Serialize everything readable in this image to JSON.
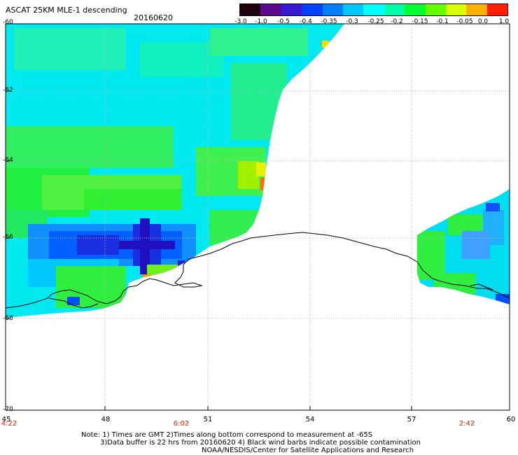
{
  "header": {
    "title": "ASCAT 25KM MLE-1 descending",
    "date": "20160620"
  },
  "colorbar": {
    "labels": [
      "-3.0",
      "-1.0",
      "-0.5",
      "-0.4",
      "-0.35",
      "-0.3",
      "-0.25",
      "-0.2",
      "-0.15",
      "-0.1",
      "-0.05",
      "0.0",
      "1.0"
    ],
    "colors": [
      "#200010",
      "#5a0a8a",
      "#3a1ad0",
      "#0040ff",
      "#0080ff",
      "#00c8ff",
      "#00ffff",
      "#00ffaa",
      "#00ff30",
      "#66ff00",
      "#d8ff00",
      "#ffb000",
      "#ff2000"
    ]
  },
  "axes": {
    "lat_labels": [
      "-60",
      "-62",
      "-64",
      "-66",
      "-68",
      "-70"
    ],
    "lon_labels": [
      "45",
      "48",
      "51",
      "54",
      "57",
      "60"
    ],
    "time_labels": [
      "4:22",
      "6:02",
      "2:42"
    ]
  },
  "footer": {
    "note1": "Note: 1) Times are GMT 2)Times along bottom correspond to measurement at -65S",
    "note2": "3)Data buffer is 22 hrs from 20160620 4) Black wind barbs indicate possible contamination",
    "credit": "NOAA/NESDIS/Center for Satellite Applications and Research"
  }
}
